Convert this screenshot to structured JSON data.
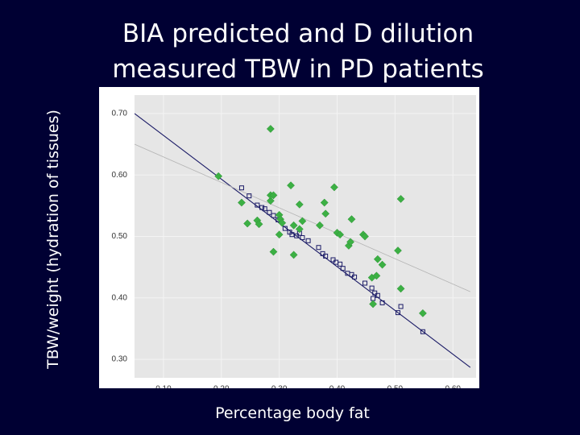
{
  "slide": {
    "title_line1": "BIA predicted and D dilution",
    "title_line2": "measured TBW in PD patients"
  },
  "colors": {
    "background": "#000033",
    "plot_bg": "#e6e6e6",
    "measured": "#3cb044",
    "predicted": "#1a1a66",
    "fit_line": "#1a1a66",
    "fit_line_measured": "#b4b4b4"
  },
  "chart_data": {
    "type": "scatter",
    "title": "BIA predicted and D dilution measured TBW in PD patients",
    "xlabel": "Percentage body fat",
    "ylabel": "TBW/weight (hydration of tissues)",
    "xlim": [
      0.05,
      0.64
    ],
    "ylim": [
      0.27,
      0.73
    ],
    "xticks": [
      0.1,
      0.2,
      0.3,
      0.4,
      0.5,
      0.6
    ],
    "yticks": [
      0.3,
      0.4,
      0.5,
      0.6,
      0.7
    ],
    "xtick_labels": [
      "0.10",
      "0.20",
      "0.30",
      "0.40",
      "0.50",
      "0.60"
    ],
    "ytick_labels": [
      "0.30",
      "0.40",
      "0.50",
      "0.60",
      "0.70"
    ],
    "grid": true,
    "legend": false,
    "series": [
      {
        "name": "D dilution measured",
        "marker": "diamond",
        "points": [
          [
            0.195,
            0.598
          ],
          [
            0.235,
            0.555
          ],
          [
            0.245,
            0.521
          ],
          [
            0.262,
            0.526
          ],
          [
            0.265,
            0.52
          ],
          [
            0.285,
            0.675
          ],
          [
            0.285,
            0.558
          ],
          [
            0.285,
            0.567
          ],
          [
            0.29,
            0.567
          ],
          [
            0.29,
            0.475
          ],
          [
            0.3,
            0.535
          ],
          [
            0.302,
            0.528
          ],
          [
            0.305,
            0.522
          ],
          [
            0.3,
            0.503
          ],
          [
            0.32,
            0.583
          ],
          [
            0.325,
            0.518
          ],
          [
            0.325,
            0.47
          ],
          [
            0.335,
            0.552
          ],
          [
            0.335,
            0.512
          ],
          [
            0.34,
            0.525
          ],
          [
            0.37,
            0.518
          ],
          [
            0.378,
            0.555
          ],
          [
            0.38,
            0.537
          ],
          [
            0.395,
            0.58
          ],
          [
            0.4,
            0.506
          ],
          [
            0.405,
            0.503
          ],
          [
            0.42,
            0.485
          ],
          [
            0.423,
            0.491
          ],
          [
            0.425,
            0.528
          ],
          [
            0.445,
            0.503
          ],
          [
            0.448,
            0.5
          ],
          [
            0.46,
            0.433
          ],
          [
            0.462,
            0.39
          ],
          [
            0.468,
            0.436
          ],
          [
            0.47,
            0.463
          ],
          [
            0.478,
            0.454
          ],
          [
            0.505,
            0.477
          ],
          [
            0.51,
            0.415
          ],
          [
            0.51,
            0.561
          ],
          [
            0.548,
            0.375
          ]
        ]
      },
      {
        "name": "BIA predicted",
        "marker": "square",
        "points": [
          [
            0.235,
            0.579
          ],
          [
            0.248,
            0.566
          ],
          [
            0.262,
            0.551
          ],
          [
            0.27,
            0.547
          ],
          [
            0.275,
            0.545
          ],
          [
            0.283,
            0.539
          ],
          [
            0.29,
            0.534
          ],
          [
            0.298,
            0.527
          ],
          [
            0.31,
            0.513
          ],
          [
            0.318,
            0.507
          ],
          [
            0.322,
            0.503
          ],
          [
            0.33,
            0.501
          ],
          [
            0.335,
            0.505
          ],
          [
            0.34,
            0.498
          ],
          [
            0.35,
            0.493
          ],
          [
            0.368,
            0.482
          ],
          [
            0.375,
            0.472
          ],
          [
            0.38,
            0.468
          ],
          [
            0.393,
            0.462
          ],
          [
            0.398,
            0.458
          ],
          [
            0.405,
            0.455
          ],
          [
            0.41,
            0.448
          ],
          [
            0.418,
            0.44
          ],
          [
            0.425,
            0.438
          ],
          [
            0.43,
            0.434
          ],
          [
            0.448,
            0.424
          ],
          [
            0.46,
            0.416
          ],
          [
            0.462,
            0.399
          ],
          [
            0.465,
            0.408
          ],
          [
            0.47,
            0.404
          ],
          [
            0.478,
            0.392
          ],
          [
            0.505,
            0.376
          ],
          [
            0.51,
            0.386
          ],
          [
            0.548,
            0.345
          ]
        ]
      }
    ],
    "fit_lines": [
      {
        "name": "BIA predicted fit",
        "from": [
          0.05,
          0.7
        ],
        "to": [
          0.63,
          0.287
        ],
        "style": "solid"
      },
      {
        "name": "D dilution measured fit",
        "from": [
          0.05,
          0.65
        ],
        "to": [
          0.63,
          0.41
        ],
        "style": "faint"
      }
    ]
  }
}
